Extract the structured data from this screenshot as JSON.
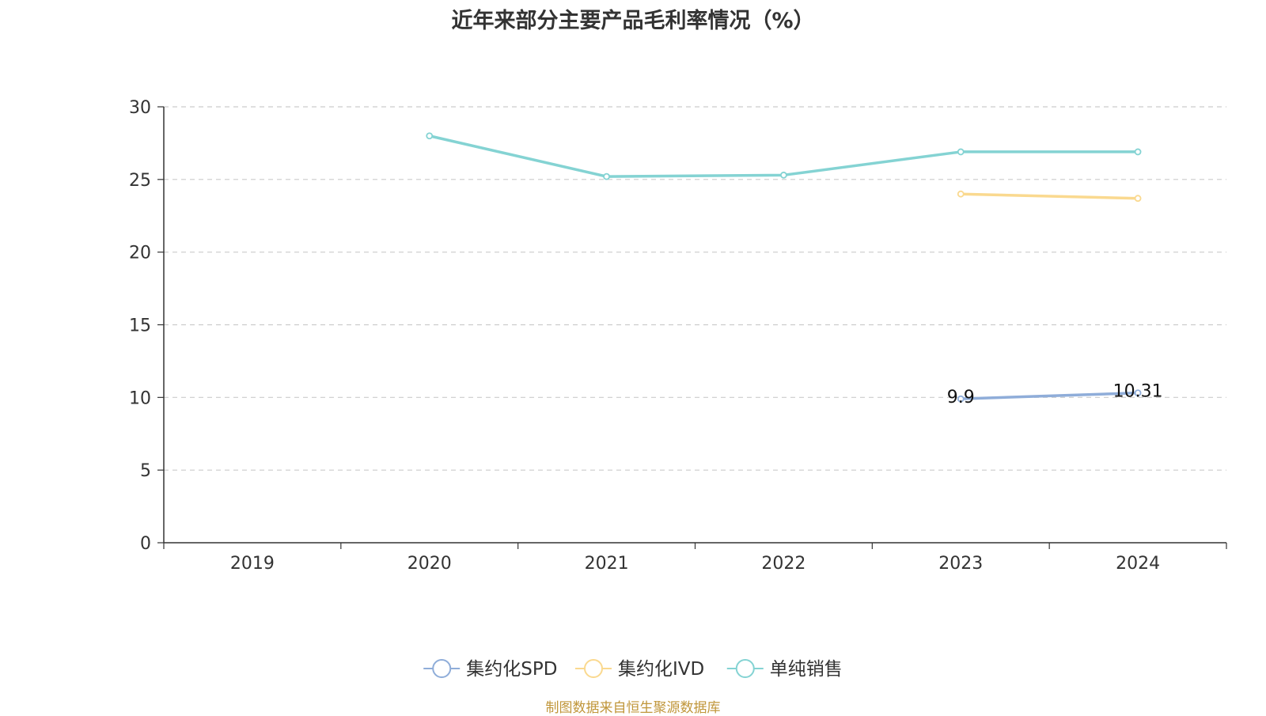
{
  "chart_data": {
    "type": "line",
    "title": "近年来部分主要产品毛利率情况（%）",
    "categories": [
      "2019",
      "2020",
      "2021",
      "2022",
      "2023",
      "2024"
    ],
    "ylim": [
      0,
      30
    ],
    "yticks": [
      0,
      5,
      10,
      15,
      20,
      25,
      30
    ],
    "grid": true,
    "legend_position": "bottom",
    "series": [
      {
        "name": "集约化SPD",
        "color": "#8fadd9",
        "values": [
          null,
          null,
          null,
          null,
          9.9,
          10.31
        ],
        "labels": [
          null,
          null,
          null,
          null,
          "9.9",
          "10.31"
        ]
      },
      {
        "name": "集约化IVD",
        "color": "#fad98f",
        "values": [
          null,
          null,
          null,
          null,
          24.0,
          23.7
        ],
        "labels": [
          null,
          null,
          null,
          null,
          null,
          null
        ]
      },
      {
        "name": "单纯销售",
        "color": "#84d3d3",
        "values": [
          null,
          28.0,
          25.2,
          25.3,
          26.9,
          26.9
        ],
        "labels": [
          null,
          null,
          null,
          null,
          null,
          null
        ]
      }
    ]
  },
  "footer": {
    "source": "制图数据来自恒生聚源数据库"
  }
}
